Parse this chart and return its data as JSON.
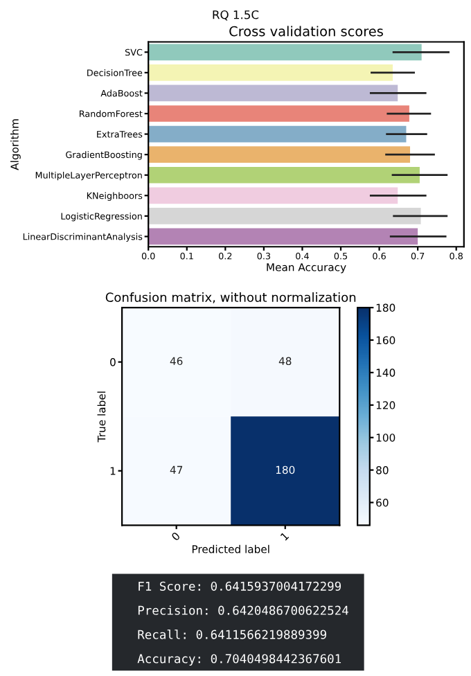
{
  "chart_data": [
    {
      "type": "bar",
      "orientation": "horizontal",
      "title": "RQ 1.5C",
      "subtitle": "Cross validation scores",
      "xlabel": "Mean Accuracy",
      "ylabel": "Algorithm",
      "categories": [
        "SVC",
        "DecisionTree",
        "AdaBoost",
        "RandomForest",
        "ExtraTrees",
        "GradientBoosting",
        "MultipleLayerPerceptron",
        "KNeighboors",
        "LogisticRegression",
        "LinearDiscriminantAnalysis"
      ],
      "values": [
        0.71,
        0.635,
        0.648,
        0.678,
        0.67,
        0.68,
        0.705,
        0.648,
        0.708,
        0.7
      ],
      "errors": [
        [
          0.637,
          0.78
        ],
        [
          0.58,
          0.69
        ],
        [
          0.578,
          0.72
        ],
        [
          0.622,
          0.732
        ],
        [
          0.62,
          0.722
        ],
        [
          0.618,
          0.742
        ],
        [
          0.635,
          0.775
        ],
        [
          0.578,
          0.72
        ],
        [
          0.638,
          0.775
        ],
        [
          0.63,
          0.772
        ]
      ],
      "colors": [
        "#90c9bc",
        "#f4f4b4",
        "#bdb9d4",
        "#e88479",
        "#84adc8",
        "#eab36c",
        "#b1d276",
        "#f0cce0",
        "#d6d6d6",
        "#b383b4"
      ],
      "xlim": [
        0,
        0.82
      ],
      "xticks": [
        {
          "value": 0,
          "label": "0.0"
        },
        0.1,
        0.2,
        0.3,
        0.4,
        0.5,
        0.6,
        0.7,
        0.8
      ],
      "grid": false,
      "legend": false
    },
    {
      "type": "heatmap",
      "title": "Confusion matrix, without normalization",
      "xlabel": "Predicted label",
      "ylabel": "True label",
      "categories": [
        "0",
        "1"
      ],
      "y_categories": [
        "0",
        "1"
      ],
      "cells": [
        [
          46,
          48
        ],
        [
          47,
          180
        ]
      ],
      "clim": [
        46,
        180
      ],
      "cticks": [
        60,
        80,
        100,
        120,
        140,
        160,
        180
      ],
      "data_labels": true
    },
    {
      "type": "other",
      "annotations": [
        "F1 Score: 0.6415937004172299",
        "Precision: 0.6420486700622524",
        "Recall: 0.6411566219889399",
        "Accuracy: 0.7040498442367601"
      ]
    }
  ]
}
